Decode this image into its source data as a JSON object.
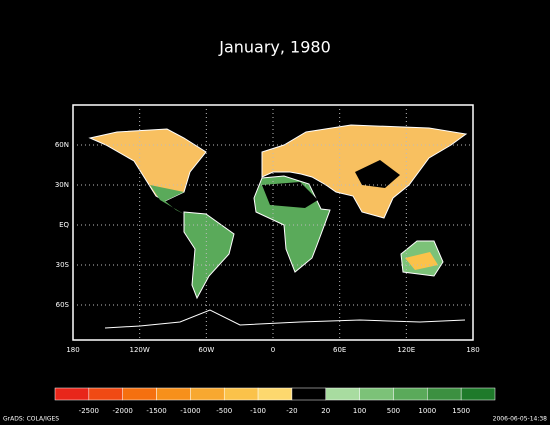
{
  "title": "January, 1980",
  "map": {
    "lon_range": [
      -180,
      180
    ],
    "lat_range": [
      -90,
      90
    ],
    "lon_ticks": [
      {
        "value": -180,
        "label": "180"
      },
      {
        "value": -120,
        "label": "120W"
      },
      {
        "value": -60,
        "label": "60W"
      },
      {
        "value": 0,
        "label": "0"
      },
      {
        "value": 60,
        "label": "60E"
      },
      {
        "value": 120,
        "label": "120E"
      },
      {
        "value": 180,
        "label": "180"
      }
    ],
    "lat_ticks": [
      {
        "value": 60,
        "label": "60N"
      },
      {
        "value": 30,
        "label": "30N"
      },
      {
        "value": 0,
        "label": "EQ"
      },
      {
        "value": -30,
        "label": "30S"
      },
      {
        "value": -60,
        "label": "60S"
      }
    ]
  },
  "colorbar": {
    "levels": [
      -2500,
      -2000,
      -1500,
      -1000,
      -500,
      -100,
      -20,
      20,
      100,
      500,
      1000,
      1500
    ],
    "colors": [
      "#e8261a",
      "#f04a14",
      "#f5700f",
      "#f7901a",
      "#f8a830",
      "#fbc24a",
      "#fdd86e",
      "#000000",
      "#a8dca0",
      "#7cc278",
      "#5aaa5a",
      "#3c9040",
      "#1e7a2a"
    ]
  },
  "footer": {
    "left": "GrADS: COLA/IGES",
    "right": "2006-06-05-14:38"
  }
}
